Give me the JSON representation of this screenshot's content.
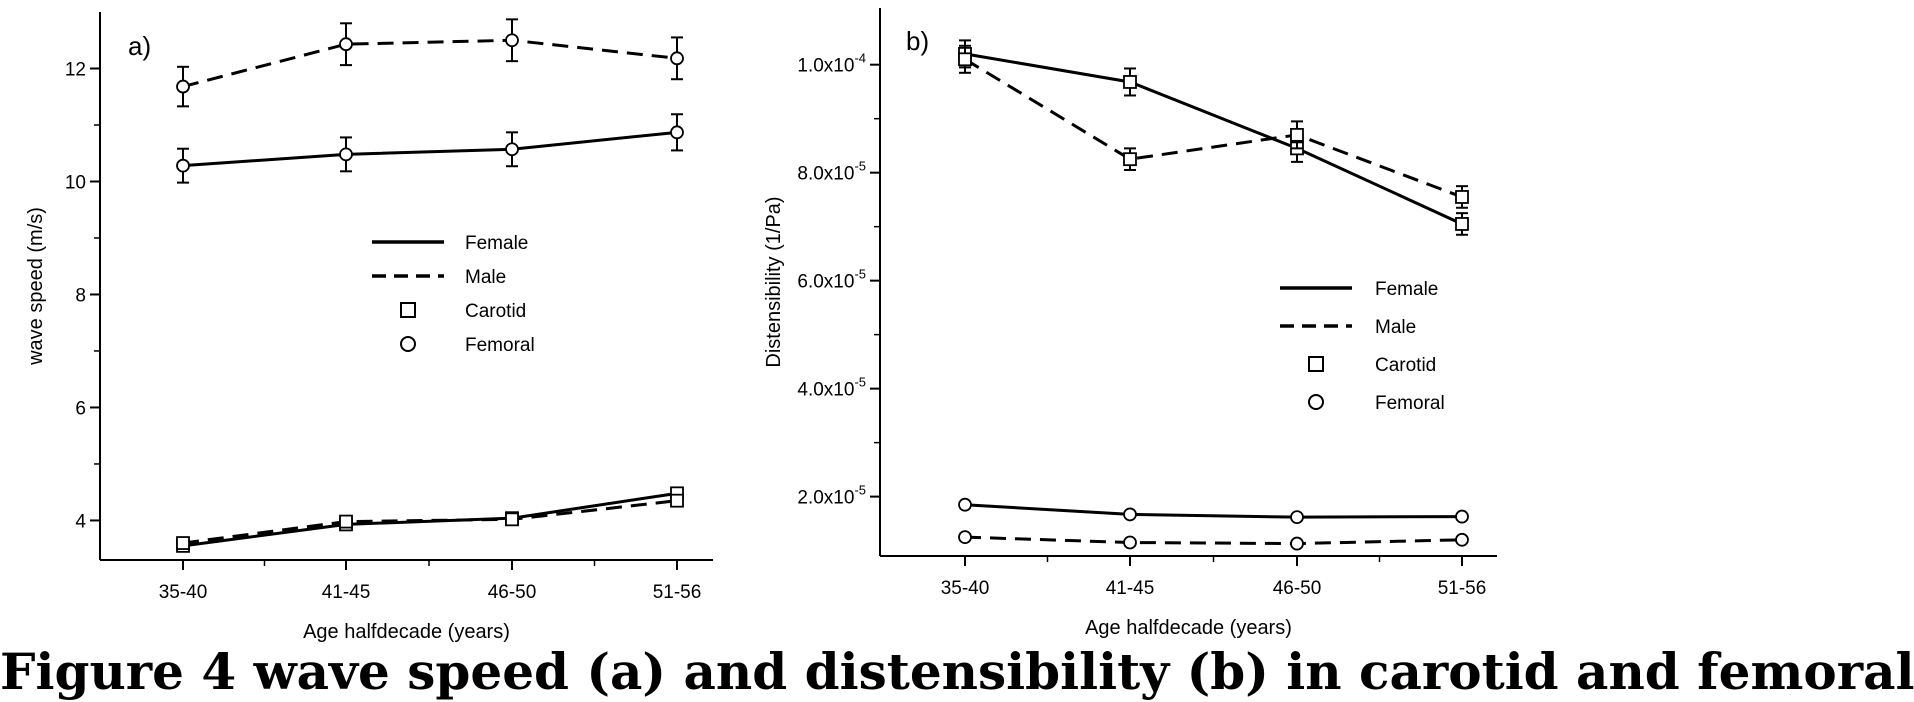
{
  "caption": "Figure 4 wave speed (a) and distensibility (b) in carotid and femoral",
  "chart_data": [
    {
      "type": "line",
      "panel_label": "a)",
      "xlabel": "Age halfdecade (years)",
      "ylabel": "wave speed (m/s)",
      "categories": [
        "35-40",
        "41-45",
        "46-50",
        "51-56"
      ],
      "ylim": [
        3.3,
        13.0
      ],
      "yticks": [
        4,
        6,
        8,
        10,
        12
      ],
      "ytick_labels": [
        "4",
        "6",
        "8",
        "10",
        "12"
      ],
      "legend": {
        "placement": "center-right",
        "entries": [
          {
            "label": "Female",
            "kind": "solid-line"
          },
          {
            "label": "Male",
            "kind": "dashed-line"
          },
          {
            "label": "Carotid",
            "kind": "square"
          },
          {
            "label": "Femoral",
            "kind": "circle"
          }
        ]
      },
      "series": [
        {
          "sex": "female",
          "artery": "femoral",
          "values": [
            10.28,
            10.48,
            10.57,
            10.87
          ],
          "errors": [
            0.3,
            0.3,
            0.3,
            0.32
          ]
        },
        {
          "sex": "male",
          "artery": "femoral",
          "values": [
            11.68,
            12.43,
            12.5,
            12.18
          ],
          "errors": [
            0.35,
            0.37,
            0.37,
            0.37
          ]
        },
        {
          "sex": "female",
          "artery": "carotid",
          "values": [
            3.55,
            3.93,
            4.04,
            4.48
          ],
          "errors": [
            0.07,
            0.07,
            0.07,
            0.09
          ]
        },
        {
          "sex": "male",
          "artery": "carotid",
          "values": [
            3.6,
            3.98,
            4.02,
            4.35
          ],
          "errors": [
            0.07,
            0.07,
            0.07,
            0.09
          ]
        }
      ]
    },
    {
      "type": "line",
      "panel_label": "b)",
      "xlabel": "Age halfdecade (years)",
      "ylabel": "Distensibility (1/Pa)",
      "categories": [
        "35-40",
        "41-45",
        "46-50",
        "51-56"
      ],
      "ylim": [
        9e-06,
        0.0001105
      ],
      "yticks": [
        2e-05,
        4e-05,
        6e-05,
        8e-05,
        0.0001
      ],
      "ytick_labels": [
        {
          "base": "2.0x10",
          "exp": "-5"
        },
        {
          "base": "4.0x10",
          "exp": "-5"
        },
        {
          "base": "6.0x10",
          "exp": "-5"
        },
        {
          "base": "8.0x10",
          "exp": "-5"
        },
        {
          "base": "1.0x10",
          "exp": "-4"
        }
      ],
      "legend": {
        "placement": "center-right",
        "entries": [
          {
            "label": "Female",
            "kind": "solid-line"
          },
          {
            "label": "Male",
            "kind": "dashed-line"
          },
          {
            "label": "Carotid",
            "kind": "square"
          },
          {
            "label": "Femoral",
            "kind": "circle"
          }
        ]
      },
      "series": [
        {
          "sex": "female",
          "artery": "carotid",
          "values": [
            0.000102,
            9.68e-05,
            8.45e-05,
            7.05e-05
          ],
          "errors": [
            2.5e-06,
            2.5e-06,
            2.5e-06,
            2e-06
          ]
        },
        {
          "sex": "male",
          "artery": "carotid",
          "values": [
            0.000101,
            8.25e-05,
            8.7e-05,
            7.55e-05
          ],
          "errors": [
            2.5e-06,
            2e-06,
            2.5e-06,
            2e-06
          ]
        },
        {
          "sex": "female",
          "artery": "femoral",
          "values": [
            1.85e-05,
            1.67e-05,
            1.62e-05,
            1.63e-05
          ],
          "errors": [
            5e-07,
            5e-07,
            5e-07,
            5e-07
          ]
        },
        {
          "sex": "male",
          "artery": "femoral",
          "values": [
            1.25e-05,
            1.15e-05,
            1.13e-05,
            1.2e-05
          ],
          "errors": [
            5e-07,
            5e-07,
            5e-07,
            5e-07
          ]
        }
      ]
    }
  ]
}
